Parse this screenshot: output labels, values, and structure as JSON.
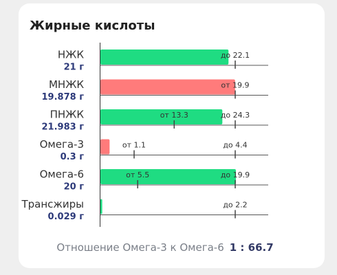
{
  "title": "Жирные кислоты",
  "rows": [
    {
      "name": "НЖК",
      "amount": 21,
      "amount_label": "21 г",
      "color": "#1fdc82",
      "max": 22.1,
      "max_label": "до 22.1"
    },
    {
      "name": "МНЖК",
      "amount": 19.878,
      "amount_label": "19.878 г",
      "color": "#ff7b7b",
      "min": 19.9,
      "min_label": "от 19.9"
    },
    {
      "name": "ПНЖК",
      "amount": 21.983,
      "amount_label": "21.983 г",
      "color": "#1fdc82",
      "min": 13.3,
      "min_label": "от 13.3",
      "max": 24.3,
      "max_label": "до 24.3"
    },
    {
      "name": "Омега-3",
      "amount": 0.3,
      "amount_label": "0.3 г",
      "color": "#ff7b7b",
      "min": 1.1,
      "min_label": "от 1.1",
      "max": 4.4,
      "max_label": "до 4.4"
    },
    {
      "name": "Омега-6",
      "amount": 20,
      "amount_label": "20 г",
      "color": "#1fdc82",
      "min": 5.5,
      "min_label": "от 5.5",
      "max": 19.9,
      "max_label": "до 19.9"
    },
    {
      "name": "Трансжиры",
      "amount": 0.029,
      "amount_label": "0.029 г",
      "color": "#1fdc82",
      "max": 2.2,
      "max_label": "до 2.2"
    }
  ],
  "ratio": {
    "label": "Отношение Омега-3 к Омега-6",
    "value": "1 : 66.7"
  }
}
